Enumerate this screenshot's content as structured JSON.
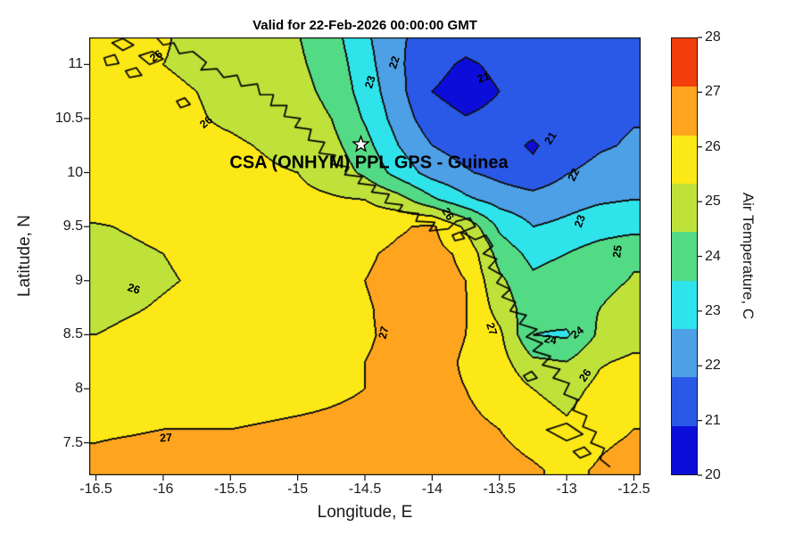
{
  "title": "Valid for 22-Feb-2026 00:00:00 GMT",
  "axes": {
    "xlabel": "Longitude, E",
    "ylabel": "Latitude, N",
    "xticks": [
      {
        "v": -16.5,
        "label": "-16.5"
      },
      {
        "v": -16,
        "label": "-16"
      },
      {
        "v": -15.5,
        "label": "-15.5"
      },
      {
        "v": -15,
        "label": "-15"
      },
      {
        "v": -14.5,
        "label": "-14.5"
      },
      {
        "v": -14,
        "label": "-14"
      },
      {
        "v": -13.5,
        "label": "-13.5"
      },
      {
        "v": -13,
        "label": "-13"
      },
      {
        "v": -12.5,
        "label": "-12.5"
      }
    ],
    "yticks": [
      {
        "v": 7.5,
        "label": "7.5"
      },
      {
        "v": 8,
        "label": "8"
      },
      {
        "v": 8.5,
        "label": "8.5"
      },
      {
        "v": 9,
        "label": "9"
      },
      {
        "v": 9.5,
        "label": "9.5"
      },
      {
        "v": 10,
        "label": "10"
      },
      {
        "v": 10.5,
        "label": "10.5"
      },
      {
        "v": 11,
        "label": "11"
      }
    ]
  },
  "colorbar": {
    "label": "Air Temperature, C",
    "min": 20,
    "max": 28,
    "ticks": [
      20,
      21,
      22,
      23,
      24,
      25,
      26,
      27,
      28
    ],
    "over_color": "#f23d0c"
  },
  "annotation": {
    "text": "CSA (ONHYM) PPL GPS - Guinea",
    "lon": -14.47,
    "lat": 10.09,
    "star": {
      "lon": -14.53,
      "lat": 10.26
    }
  },
  "chart_data": {
    "type": "filled_contour",
    "units": "degrees C",
    "xlim": [
      -16.55,
      -12.45
    ],
    "ylim": [
      7.2,
      11.25
    ],
    "levels": [
      21,
      22,
      23,
      24,
      25,
      26,
      27
    ],
    "band_colors": [
      "#0d0dd9",
      "#2a59e8",
      "#4d9fe6",
      "#2fe3ea",
      "#53da84",
      "#bfe23a",
      "#fbe816",
      "#ffa41e"
    ],
    "x": [
      -16.5,
      -16.25,
      -16.0,
      -15.75,
      -15.5,
      -15.25,
      -15.0,
      -14.75,
      -14.5,
      -14.25,
      -14.0,
      -13.75,
      -13.5,
      -13.25,
      -13.0,
      -12.75,
      -12.5
    ],
    "y": [
      11.25,
      11.0,
      10.75,
      10.5,
      10.25,
      10.0,
      9.75,
      9.5,
      9.25,
      9.0,
      8.75,
      8.5,
      8.25,
      8.0,
      7.75,
      7.5,
      7.25
    ],
    "values": [
      [
        26.2,
        26.1,
        26.05,
        25.85,
        25.6,
        25.35,
        25.05,
        24.4,
        23.2,
        22.1,
        21.7,
        21.4,
        21.6,
        21.5,
        21.45,
        21.55,
        21.7
      ],
      [
        26.25,
        26.1,
        26.0,
        25.9,
        25.7,
        25.45,
        25.15,
        24.6,
        23.4,
        22.15,
        21.3,
        20.85,
        21.2,
        21.35,
        21.45,
        21.55,
        21.7
      ],
      [
        26.3,
        26.2,
        26.1,
        26.0,
        25.85,
        25.6,
        25.3,
        24.75,
        23.6,
        22.3,
        21.0,
        20.6,
        21.0,
        21.3,
        21.45,
        21.6,
        21.8
      ],
      [
        26.3,
        26.25,
        26.15,
        26.05,
        25.9,
        25.75,
        25.5,
        25.0,
        23.9,
        22.55,
        21.4,
        21.05,
        21.25,
        21.35,
        21.55,
        21.8,
        21.95
      ],
      [
        26.35,
        26.3,
        26.2,
        26.15,
        26.1,
        25.95,
        25.75,
        25.3,
        24.35,
        23.0,
        22.0,
        21.6,
        21.3,
        20.9,
        21.5,
        21.9,
        22.1
      ],
      [
        26.35,
        26.3,
        26.3,
        26.3,
        26.2,
        26.1,
        26.0,
        25.6,
        24.8,
        23.6,
        22.6,
        22.1,
        21.7,
        21.2,
        21.95,
        22.3,
        22.5
      ],
      [
        26.35,
        26.3,
        26.3,
        26.3,
        26.3,
        26.2,
        26.2,
        26.1,
        26.0,
        25.4,
        24.2,
        23.2,
        22.6,
        22.4,
        22.7,
        22.9,
        23.0
      ],
      [
        25.95,
        26.05,
        26.15,
        26.25,
        26.3,
        26.3,
        26.35,
        26.4,
        26.6,
        26.9,
        27.15,
        25.8,
        23.8,
        23.0,
        23.2,
        23.5,
        23.65
      ],
      [
        25.8,
        25.9,
        26.0,
        26.1,
        26.2,
        26.35,
        26.5,
        26.7,
        26.9,
        27.15,
        27.3,
        26.8,
        24.6,
        23.7,
        24.0,
        24.5,
        24.9
      ],
      [
        25.75,
        25.85,
        25.95,
        26.05,
        26.2,
        26.35,
        26.55,
        26.8,
        27.0,
        27.2,
        27.3,
        27.0,
        25.2,
        24.2,
        24.5,
        24.8,
        25.05
      ],
      [
        25.85,
        25.95,
        26.05,
        26.15,
        26.25,
        26.4,
        26.55,
        26.75,
        26.95,
        27.15,
        27.25,
        27.05,
        25.6,
        24.4,
        24.6,
        25.0,
        25.3
      ],
      [
        26.0,
        26.1,
        26.15,
        26.25,
        26.35,
        26.5,
        26.65,
        26.8,
        26.95,
        27.1,
        27.2,
        27.0,
        26.2,
        24.0,
        23.85,
        25.2,
        25.6
      ],
      [
        26.4,
        26.4,
        26.45,
        26.5,
        26.5,
        26.6,
        26.7,
        26.85,
        27.0,
        27.1,
        27.15,
        26.95,
        26.4,
        25.2,
        25.0,
        25.9,
        26.2
      ],
      [
        26.6,
        26.6,
        26.65,
        26.7,
        26.7,
        26.75,
        26.8,
        26.9,
        27.0,
        27.1,
        27.1,
        27.0,
        26.7,
        26.0,
        25.6,
        26.3,
        26.6
      ],
      [
        26.85,
        26.85,
        26.9,
        26.9,
        26.9,
        26.95,
        27.0,
        27.05,
        27.1,
        27.15,
        27.2,
        27.1,
        26.9,
        26.4,
        26.0,
        26.6,
        26.9
      ],
      [
        27.0,
        27.05,
        27.1,
        27.1,
        27.1,
        27.15,
        27.2,
        27.2,
        27.25,
        27.3,
        27.3,
        27.25,
        27.1,
        26.8,
        26.4,
        26.9,
        27.1
      ],
      [
        27.25,
        27.3,
        27.3,
        27.3,
        27.35,
        27.4,
        27.4,
        27.4,
        27.45,
        27.5,
        27.5,
        27.45,
        27.3,
        27.1,
        26.8,
        27.1,
        27.3
      ]
    ],
    "contour_labels": [
      {
        "t": "26",
        "lon": -16.05,
        "lat": 11.08,
        "rot": -35
      },
      {
        "t": "26",
        "lon": -15.68,
        "lat": 10.47,
        "rot": -40
      },
      {
        "t": "26",
        "lon": -16.22,
        "lat": 8.92,
        "rot": 18
      },
      {
        "t": "27",
        "lon": -15.98,
        "lat": 7.55,
        "rot": -4
      },
      {
        "t": "27",
        "lon": -14.36,
        "lat": 8.52,
        "rot": -76
      },
      {
        "t": "27",
        "lon": -13.56,
        "lat": 8.55,
        "rot": 72
      },
      {
        "t": "26",
        "lon": -13.88,
        "lat": 9.62,
        "rot": 58
      },
      {
        "t": "23",
        "lon": -14.46,
        "lat": 10.84,
        "rot": -72
      },
      {
        "t": "22",
        "lon": -14.28,
        "lat": 11.02,
        "rot": -72
      },
      {
        "t": "21",
        "lon": -13.62,
        "lat": 10.88,
        "rot": -20
      },
      {
        "t": "21",
        "lon": -13.12,
        "lat": 10.32,
        "rot": -58
      },
      {
        "t": "22",
        "lon": -12.95,
        "lat": 9.98,
        "rot": -64
      },
      {
        "t": "23",
        "lon": -12.9,
        "lat": 9.55,
        "rot": -70
      },
      {
        "t": "25",
        "lon": -12.62,
        "lat": 9.27,
        "rot": -82
      },
      {
        "t": "24",
        "lon": -13.12,
        "lat": 8.45,
        "rot": 12
      },
      {
        "t": "24",
        "lon": -12.92,
        "lat": 8.52,
        "rot": -38
      },
      {
        "t": "26",
        "lon": -12.86,
        "lat": 8.12,
        "rot": -55
      }
    ],
    "coastlines": [
      [
        [
          -16.05,
          11.25
        ],
        [
          -16.0,
          11.18
        ],
        [
          -15.92,
          11.2
        ],
        [
          -15.88,
          11.1
        ],
        [
          -15.78,
          11.12
        ],
        [
          -15.68,
          11.02
        ],
        [
          -15.72,
          10.95
        ],
        [
          -15.6,
          10.96
        ],
        [
          -15.55,
          10.88
        ],
        [
          -15.45,
          10.9
        ],
        [
          -15.42,
          10.8
        ],
        [
          -15.3,
          10.82
        ],
        [
          -15.28,
          10.72
        ],
        [
          -15.18,
          10.72
        ],
        [
          -15.2,
          10.62
        ],
        [
          -15.08,
          10.62
        ],
        [
          -15.1,
          10.52
        ],
        [
          -14.98,
          10.5
        ],
        [
          -15.02,
          10.42
        ],
        [
          -14.9,
          10.4
        ],
        [
          -14.92,
          10.3
        ],
        [
          -14.8,
          10.28
        ],
        [
          -14.84,
          10.18
        ],
        [
          -14.72,
          10.16
        ],
        [
          -14.75,
          10.08
        ],
        [
          -14.62,
          10.05
        ],
        [
          -14.65,
          9.98
        ],
        [
          -14.52,
          9.96
        ],
        [
          -14.55,
          9.9
        ],
        [
          -14.42,
          9.88
        ],
        [
          -14.45,
          9.82
        ],
        [
          -14.32,
          9.8
        ],
        [
          -14.35,
          9.72
        ],
        [
          -14.22,
          9.7
        ],
        [
          -14.25,
          9.64
        ],
        [
          -14.1,
          9.62
        ],
        [
          -14.12,
          9.55
        ],
        [
          -13.98,
          9.54
        ],
        [
          -14.02,
          9.46
        ],
        [
          -13.88,
          9.48
        ],
        [
          -13.82,
          9.55
        ],
        [
          -13.72,
          9.58
        ],
        [
          -13.68,
          9.5
        ],
        [
          -13.78,
          9.45
        ],
        [
          -13.68,
          9.38
        ],
        [
          -13.6,
          9.42
        ],
        [
          -13.55,
          9.32
        ],
        [
          -13.62,
          9.25
        ],
        [
          -13.52,
          9.2
        ],
        [
          -13.58,
          9.12
        ],
        [
          -13.48,
          9.05
        ],
        [
          -13.52,
          8.98
        ],
        [
          -13.42,
          8.92
        ],
        [
          -13.48,
          8.85
        ],
        [
          -13.38,
          8.8
        ],
        [
          -13.42,
          8.72
        ],
        [
          -13.3,
          8.68
        ],
        [
          -13.35,
          8.6
        ],
        [
          -13.22,
          8.55
        ],
        [
          -13.3,
          8.48
        ],
        [
          -13.18,
          8.42
        ],
        [
          -13.25,
          8.35
        ],
        [
          -13.12,
          8.3
        ],
        [
          -13.18,
          8.22
        ],
        [
          -13.05,
          8.18
        ],
        [
          -13.1,
          8.1
        ],
        [
          -12.98,
          8.05
        ],
        [
          -13.02,
          7.95
        ],
        [
          -12.92,
          7.9
        ],
        [
          -12.95,
          7.8
        ],
        [
          -12.85,
          7.75
        ],
        [
          -12.88,
          7.65
        ],
        [
          -12.78,
          7.6
        ],
        [
          -12.82,
          7.5
        ],
        [
          -12.72,
          7.45
        ],
        [
          -12.75,
          7.35
        ],
        [
          -12.68,
          7.28
        ]
      ],
      [
        [
          -16.38,
          11.2
        ],
        [
          -16.3,
          11.24
        ],
        [
          -16.22,
          11.18
        ],
        [
          -16.3,
          11.13
        ],
        [
          -16.38,
          11.2
        ]
      ],
      [
        [
          -16.18,
          11.08
        ],
        [
          -16.08,
          11.12
        ],
        [
          -16.0,
          11.05
        ],
        [
          -16.1,
          11.0
        ],
        [
          -16.18,
          11.08
        ]
      ],
      [
        [
          -16.44,
          11.06
        ],
        [
          -16.36,
          11.09
        ],
        [
          -16.33,
          11.01
        ],
        [
          -16.42,
          10.99
        ],
        [
          -16.44,
          11.06
        ]
      ],
      [
        [
          -16.28,
          10.94
        ],
        [
          -16.2,
          10.97
        ],
        [
          -16.16,
          10.9
        ],
        [
          -16.25,
          10.88
        ],
        [
          -16.28,
          10.94
        ]
      ],
      [
        [
          -15.9,
          10.66
        ],
        [
          -15.84,
          10.69
        ],
        [
          -15.8,
          10.63
        ],
        [
          -15.87,
          10.6
        ],
        [
          -15.9,
          10.66
        ]
      ],
      [
        [
          -13.85,
          9.42
        ],
        [
          -13.79,
          9.45
        ],
        [
          -13.76,
          9.39
        ],
        [
          -13.83,
          9.37
        ],
        [
          -13.85,
          9.42
        ]
      ],
      [
        [
          -13.15,
          7.62
        ],
        [
          -13.0,
          7.68
        ],
        [
          -12.88,
          7.58
        ],
        [
          -13.0,
          7.52
        ],
        [
          -13.15,
          7.62
        ]
      ],
      [
        [
          -13.32,
          8.12
        ],
        [
          -13.26,
          8.16
        ],
        [
          -13.22,
          8.1
        ],
        [
          -13.29,
          8.07
        ],
        [
          -13.32,
          8.12
        ]
      ],
      [
        [
          -12.95,
          7.42
        ],
        [
          -12.87,
          7.46
        ],
        [
          -12.82,
          7.4
        ],
        [
          -12.9,
          7.36
        ],
        [
          -12.95,
          7.42
        ]
      ]
    ]
  }
}
